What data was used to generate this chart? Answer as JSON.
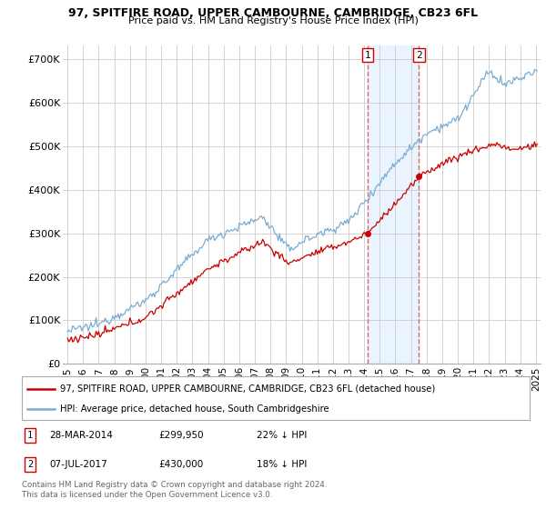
{
  "title1": "97, SPITFIRE ROAD, UPPER CAMBOURNE, CAMBRIDGE, CB23 6FL",
  "title2": "Price paid vs. HM Land Registry's House Price Index (HPI)",
  "legend_line1": "97, SPITFIRE ROAD, UPPER CAMBOURNE, CAMBRIDGE, CB23 6FL (detached house)",
  "legend_line2": "HPI: Average price, detached house, South Cambridgeshire",
  "annotation1_label": "1",
  "annotation1_date": "28-MAR-2014",
  "annotation1_price": "£299,950",
  "annotation1_hpi": "22% ↓ HPI",
  "annotation2_label": "2",
  "annotation2_date": "07-JUL-2017",
  "annotation2_price": "£430,000",
  "annotation2_hpi": "18% ↓ HPI",
  "footnote1": "Contains HM Land Registry data © Crown copyright and database right 2024.",
  "footnote2": "This data is licensed under the Open Government Licence v3.0.",
  "sale1_x": 2014.24,
  "sale1_y": 299950,
  "sale2_x": 2017.51,
  "sale2_y": 430000,
  "red_color": "#cc0000",
  "blue_color": "#7aadd4",
  "vline_color": "#dd6666",
  "shade_color": "#ddeeff",
  "ylim_min": 0,
  "ylim_max": 730000,
  "xlim_min": 1994.7,
  "xlim_max": 2025.3,
  "yticks": [
    0,
    100000,
    200000,
    300000,
    400000,
    500000,
    600000,
    700000
  ],
  "ytick_labels": [
    "£0",
    "£100K",
    "£200K",
    "£300K",
    "£400K",
    "£500K",
    "£600K",
    "£700K"
  ],
  "xticks": [
    1995,
    1996,
    1997,
    1998,
    1999,
    2000,
    2001,
    2002,
    2003,
    2004,
    2005,
    2006,
    2007,
    2008,
    2009,
    2010,
    2011,
    2012,
    2013,
    2014,
    2015,
    2016,
    2017,
    2018,
    2019,
    2020,
    2021,
    2022,
    2023,
    2024,
    2025
  ]
}
